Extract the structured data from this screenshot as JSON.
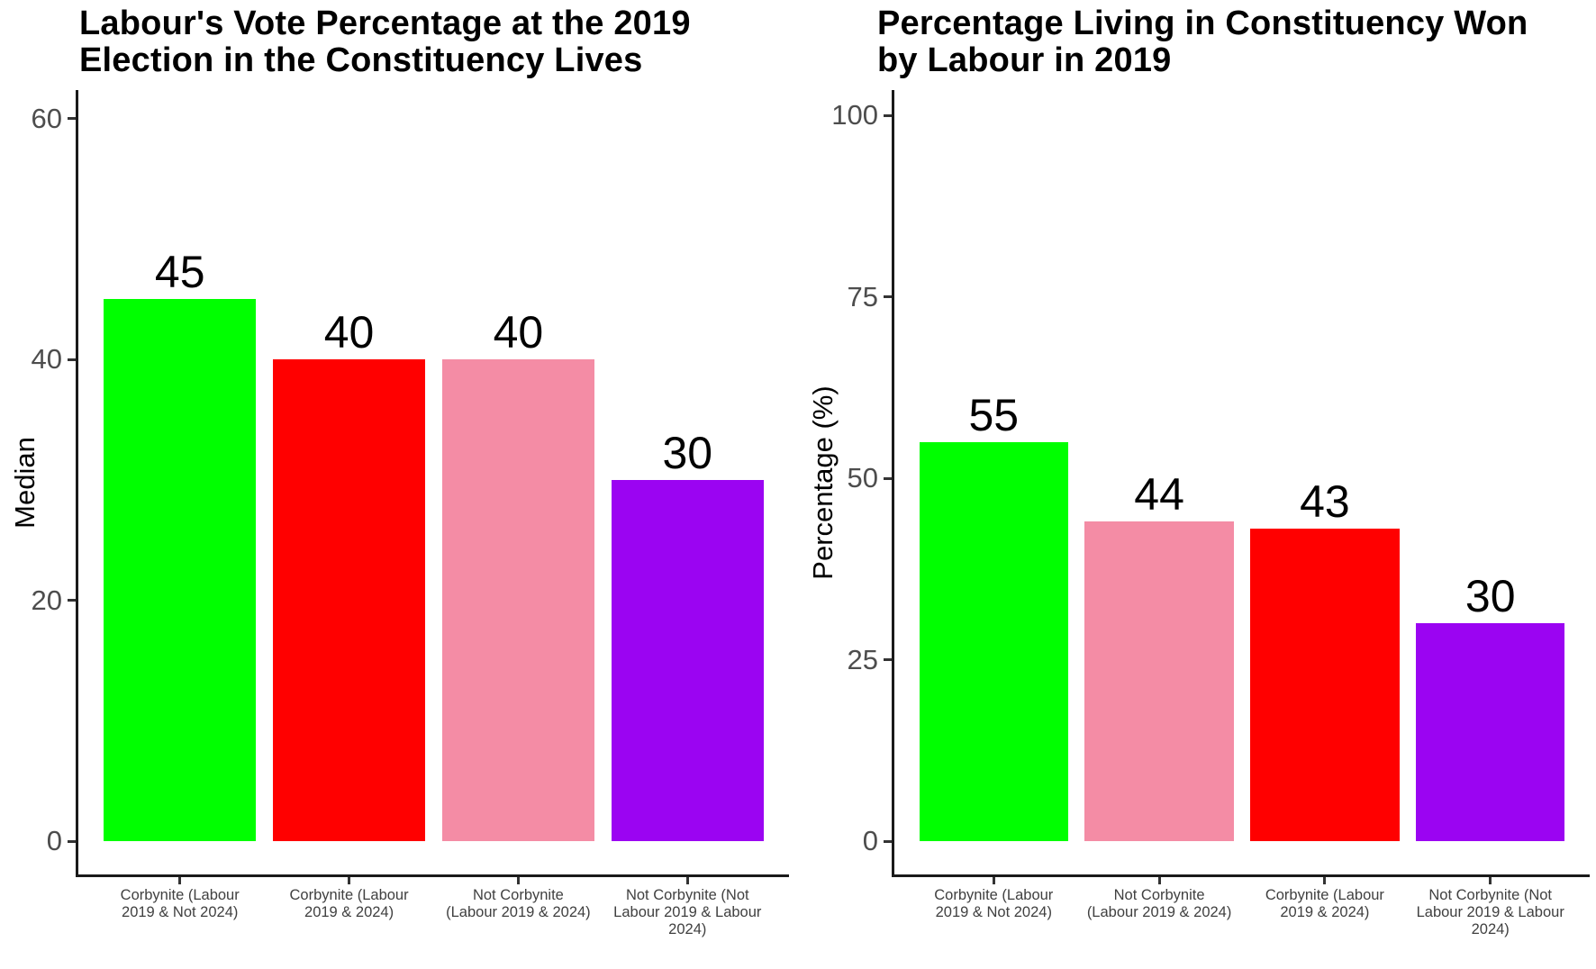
{
  "figure": {
    "background": "#FFFFFF"
  },
  "styles": {
    "axis_color": "#1A1A1A",
    "tick_mark_color": "#333333",
    "tick_label_color": "#4D4D4D",
    "category_label_color": "#404040",
    "value_label_color": "#000000",
    "title_color": "#000000"
  },
  "chart_data": [
    {
      "type": "bar",
      "title": "Labour's Vote Percentage at the 2019 Election in the Constituency Lives",
      "title_lines": [
        "Labour's Vote Percentage at the 2019",
        "Election in the Constituency Lives"
      ],
      "xlabel": "",
      "ylabel": "Median",
      "categories": [
        "Corbynite (Labour 2019 & Not 2024)",
        "Corbynite (Labour 2019 & 2024)",
        "Not Corbynite (Labour 2019 & 2024)",
        "Not Corbynite (Not Labour 2019 & Labour 2024)"
      ],
      "category_lines": [
        [
          "Corbynite (Labour",
          "2019 & Not 2024)"
        ],
        [
          "Corbynite (Labour",
          "2019 & 2024)"
        ],
        [
          "Not Corbynite",
          "(Labour 2019 & 2024)"
        ],
        [
          "Not Corbynite (Not",
          "Labour 2019 & Labour",
          "2024)"
        ]
      ],
      "values": [
        45,
        40,
        40,
        30
      ],
      "bar_labels": [
        "45",
        "40",
        "40",
        "30"
      ],
      "bar_colors": [
        "#00FF00",
        "#FF0000",
        "#F48CA5",
        "#9B04F2"
      ],
      "yticks": [
        0,
        20,
        40,
        60
      ],
      "ylim": [
        0,
        62.4
      ],
      "grid": false,
      "legend": false
    },
    {
      "type": "bar",
      "title": "Percentage Living in Constituency Won by Labour in 2019",
      "title_lines": [
        "Percentage Living in Constituency Won",
        "by Labour in 2019"
      ],
      "xlabel": "",
      "ylabel": "Percentage (%)",
      "categories": [
        "Corbynite (Labour 2019 & Not 2024)",
        "Not Corbynite (Labour 2019 & 2024)",
        "Corbynite (Labour 2019 & 2024)",
        "Not Corbynite (Not Labour 2019 & Labour 2024)"
      ],
      "category_lines": [
        [
          "Corbynite (Labour",
          "2019 & Not 2024)"
        ],
        [
          "Not Corbynite",
          "(Labour 2019 & 2024)"
        ],
        [
          "Corbynite (Labour",
          "2019 & 2024)"
        ],
        [
          "Not Corbynite (Not",
          "Labour 2019 & Labour",
          "2024)"
        ]
      ],
      "values": [
        55,
        44,
        43,
        30
      ],
      "bar_labels": [
        "55",
        "44",
        "43",
        "30"
      ],
      "bar_colors": [
        "#00FF00",
        "#F48CA5",
        "#FF0000",
        "#9B04F2"
      ],
      "yticks": [
        0,
        25,
        50,
        75,
        100
      ],
      "ylim": [
        0,
        103.5
      ],
      "grid": false,
      "legend": false
    }
  ]
}
